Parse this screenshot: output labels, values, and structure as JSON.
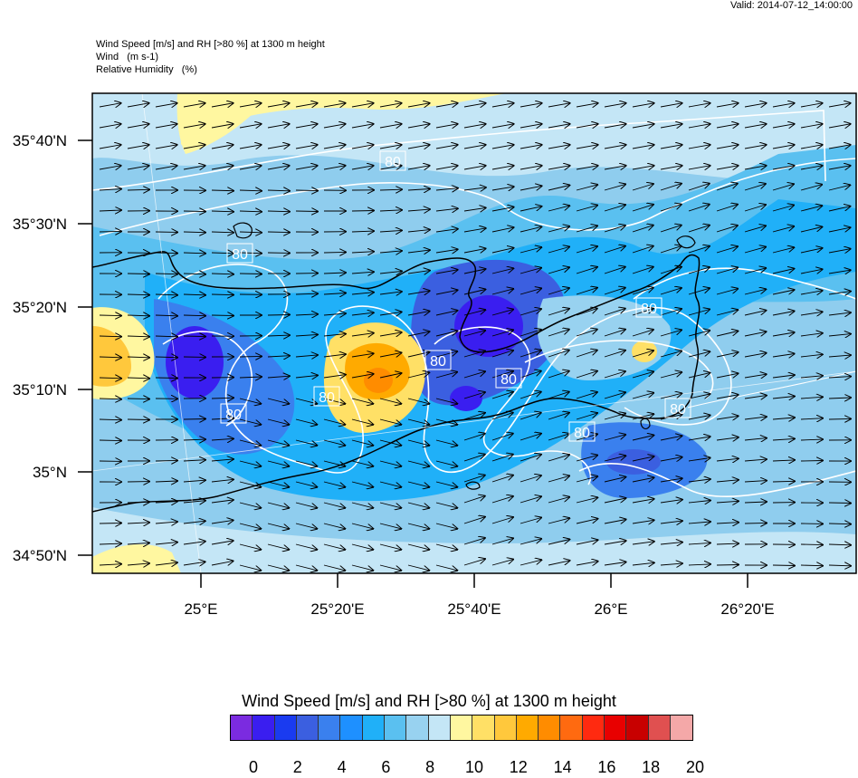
{
  "header": {
    "valid": "Valid: 2014-07-12_14:00:00",
    "title_line1": "Wind Speed [m/s] and RH [>80 %] at 1300 m height",
    "title_line2": "Wind   (m s-1)",
    "title_line3": "Relative Humidity   (%)"
  },
  "map": {
    "lat_labels": [
      "35°40'N",
      "35°30'N",
      "35°20'N",
      "35°10'N",
      "35°N",
      "34°50'N"
    ],
    "lon_labels": [
      "25°E",
      "25°20'E",
      "25°40'E",
      "26°E",
      "26°20'E"
    ],
    "contour_label": "80",
    "contour_labels": [
      "80",
      "80",
      "80",
      "80",
      "80",
      "80",
      "80",
      "80",
      "80"
    ],
    "background_color": "#8fcdee"
  },
  "colorbar": {
    "title": "Wind Speed [m/s] and RH [>80 %] at 1300 m height",
    "colors": [
      "#7b2be0",
      "#3a1ef0",
      "#1a3bf0",
      "#3b5fe0",
      "#3a80ee",
      "#1e90ff",
      "#20b0f8",
      "#5ac0f0",
      "#98d2f0",
      "#c4e6f6",
      "#fff7a0",
      "#ffe066",
      "#ffc83c",
      "#ffaa00",
      "#ff8c00",
      "#ff6a10",
      "#ff2a10",
      "#e80000",
      "#c80000",
      "#e05050",
      "#f4a8a8"
    ],
    "tick_labels": [
      "0",
      "2",
      "4",
      "6",
      "8",
      "10",
      "12",
      "14",
      "16",
      "18",
      "20"
    ]
  }
}
